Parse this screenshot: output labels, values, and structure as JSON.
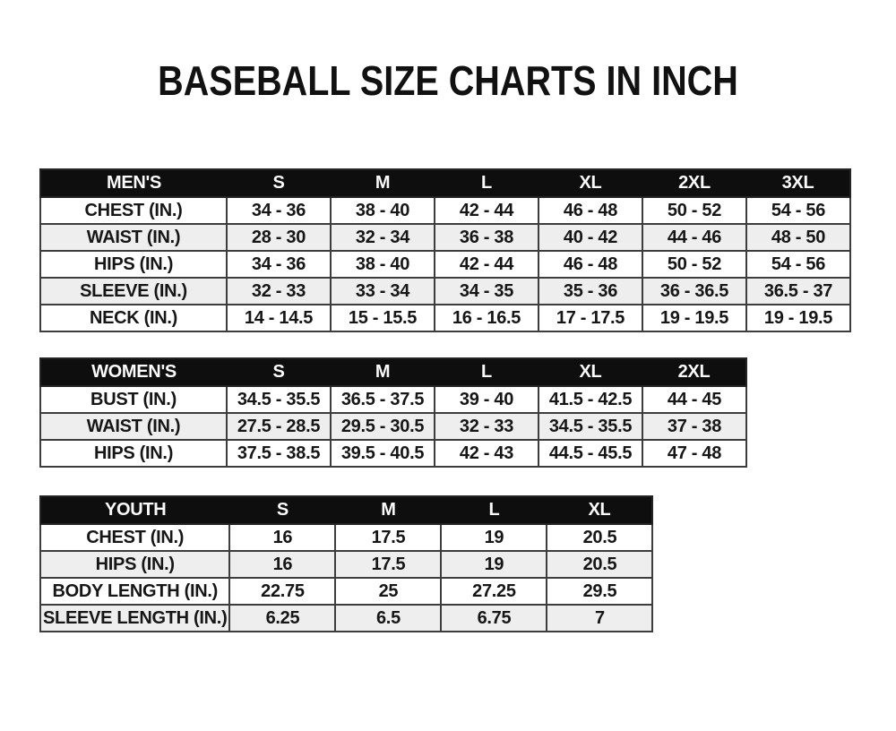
{
  "page": {
    "title": "BASEBALL SIZE CHARTS IN INCH",
    "unit": "inch"
  },
  "colors": {
    "page_background": "#ffffff",
    "header_background": "#0e0e0e",
    "header_text": "#fafafa",
    "row_background": "#ffffff",
    "row_alternate_background": "#eeeeee",
    "border": "#3d3d3d",
    "text": "#161616"
  },
  "tables": [
    {
      "id": "mens",
      "title": "MEN'S",
      "header": [
        "MEN'S",
        "S",
        "M",
        "L",
        "XL",
        "2XL",
        "3XL"
      ],
      "rows": [
        [
          "CHEST (IN.)",
          "34 - 36",
          "38 - 40",
          "42 - 44",
          "46 - 48",
          "50 - 52",
          "54 - 56"
        ],
        [
          "WAIST (IN.)",
          "28 - 30",
          "32 - 34",
          "36 - 38",
          "40 - 42",
          "44 - 46",
          "48 - 50"
        ],
        [
          "HIPS (IN.)",
          "34 - 36",
          "38 - 40",
          "42 - 44",
          "46 - 48",
          "50 - 52",
          "54 - 56"
        ],
        [
          "SLEEVE (IN.)",
          "32 - 33",
          "33 - 34",
          "34 - 35",
          "35 - 36",
          "36 - 36.5",
          "36.5 - 37"
        ],
        [
          "NECK (IN.)",
          "14 - 14.5",
          "15 - 15.5",
          "16 - 16.5",
          "17 - 17.5",
          "19 - 19.5",
          "19 - 19.5"
        ]
      ]
    },
    {
      "id": "womens",
      "title": "WOMEN'S",
      "header": [
        "WOMEN'S",
        "S",
        "M",
        "L",
        "XL",
        "2XL"
      ],
      "rows": [
        [
          "BUST (IN.)",
          "34.5 - 35.5",
          "36.5 - 37.5",
          "39 - 40",
          "41.5 - 42.5",
          "44 - 45"
        ],
        [
          "WAIST (IN.)",
          "27.5 - 28.5",
          "29.5 - 30.5",
          "32 - 33",
          "34.5 - 35.5",
          "37 - 38"
        ],
        [
          "HIPS (IN.)",
          "37.5 - 38.5",
          "39.5 - 40.5",
          "42 - 43",
          "44.5 - 45.5",
          "47 - 48"
        ]
      ]
    },
    {
      "id": "youth",
      "title": "YOUTH",
      "header": [
        "YOUTH",
        "S",
        "M",
        "L",
        "XL"
      ],
      "rows": [
        [
          "CHEST (IN.)",
          "16",
          "17.5",
          "19",
          "20.5"
        ],
        [
          "HIPS (IN.)",
          "16",
          "17.5",
          "19",
          "20.5"
        ],
        [
          "BODY LENGTH (IN.)",
          "22.75",
          "25",
          "27.25",
          "29.5"
        ],
        [
          "SLEEVE LENGTH (IN.)",
          "6.25",
          "6.5",
          "6.75",
          "7"
        ]
      ]
    }
  ]
}
